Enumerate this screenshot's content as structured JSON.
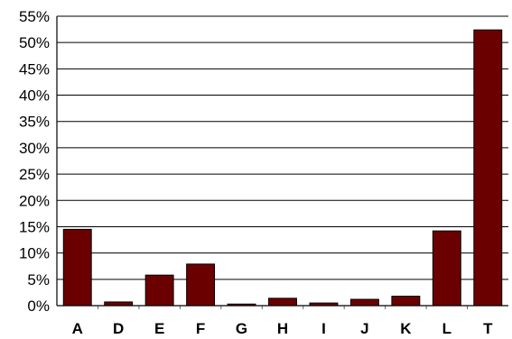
{
  "chart_data": {
    "type": "bar",
    "title": "",
    "xlabel": "",
    "ylabel": "",
    "categories": [
      "A",
      "D",
      "E",
      "F",
      "G",
      "H",
      "I",
      "J",
      "K",
      "L",
      "T"
    ],
    "values": [
      14.5,
      0.7,
      5.8,
      7.9,
      0.3,
      1.4,
      0.5,
      1.2,
      1.8,
      14.2,
      52.4
    ],
    "ylim": [
      0,
      55
    ],
    "yticks": [
      0,
      5,
      10,
      15,
      20,
      25,
      30,
      35,
      40,
      45,
      50,
      55
    ],
    "ytick_labels": [
      "0%",
      "5%",
      "10%",
      "15%",
      "20%",
      "25%",
      "30%",
      "35%",
      "40%",
      "45%",
      "50%",
      "55%"
    ],
    "grid": true,
    "legend": false,
    "bar_color": "#6b0000"
  }
}
